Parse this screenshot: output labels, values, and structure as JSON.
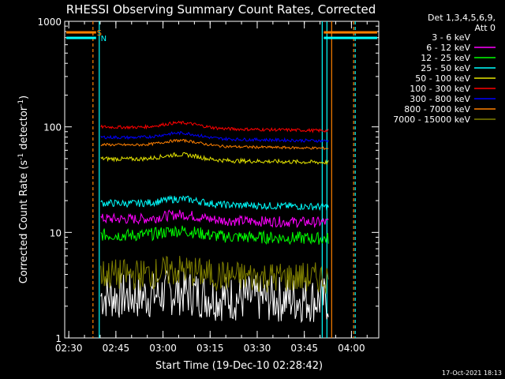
{
  "chart_data": {
    "type": "line",
    "title": "RHESSI Observing Summary Count Rates, Corrected",
    "xlabel": "Start Time (19-Dec-10 02:28:42)",
    "ylabel_pre": "Corrected Count Rate (s",
    "ylabel_sup1": "-1",
    "ylabel_mid": " detector",
    "ylabel_sup2": "-1",
    "ylabel_post": ")",
    "ylabel": "Corrected Count Rate (s-1 detector-1)",
    "yscale": "log",
    "ylim": [
      1,
      1000
    ],
    "xlim_minutes_after_0228": [
      0,
      100
    ],
    "x_ticks": [
      "02:30",
      "02:45",
      "03:00",
      "03:15",
      "03:30",
      "03:45",
      "04:00"
    ],
    "y_ticks": [
      "1",
      "10",
      "100",
      "1000"
    ],
    "legend_position": "top-right, outside plot",
    "legend_header": [
      "Det 1,3,4,5,6,9,",
      "Att 0"
    ],
    "flags": [
      {
        "label": "S",
        "color": "#ff8000"
      },
      {
        "label": "N",
        "color": "#00ffff"
      }
    ],
    "markers_minutes": [
      {
        "t": 9,
        "color": "#ff8000"
      },
      {
        "t": 11,
        "color": "#00ffff"
      },
      {
        "t": 82,
        "color": "#00ffff"
      },
      {
        "t": 83.5,
        "color": "#00ffff"
      },
      {
        "t": 85,
        "color": "#ff8000"
      },
      {
        "t": 92,
        "color": "#ff8000"
      },
      {
        "t": 92.5,
        "color": "#00ffff"
      }
    ],
    "data_start_minute": 11.5,
    "data_end_minute": 84,
    "series": [
      {
        "name": "3 - 6 keV",
        "color": "#ffffff",
        "level": 2.5,
        "noise": 0.45,
        "series_color_label": "#000000"
      },
      {
        "name": "6 - 12 keV",
        "color": "#ff00ff",
        "level": 13.5,
        "noise": 0.1
      },
      {
        "name": "12 - 25 keV",
        "color": "#00ff00",
        "level": 9.5,
        "noise": 0.12
      },
      {
        "name": "25 - 50 keV",
        "color": "#00ffff",
        "level": 19,
        "noise": 0.07
      },
      {
        "name": "50 - 100 keV",
        "color": "#e6e600",
        "level": 50,
        "noise": 0.04
      },
      {
        "name": "100 - 300 keV",
        "color": "#ff0000",
        "level": 100,
        "noise": 0.03
      },
      {
        "name": "300 - 800 keV",
        "color": "#0000ff",
        "level": 80,
        "noise": 0.03
      },
      {
        "name": "800 - 7000 keV",
        "color": "#ff8000",
        "level": 68,
        "noise": 0.025
      },
      {
        "name": "7000 - 15000 keV",
        "color": "#808000",
        "level": 4.0,
        "noise": 0.3
      }
    ],
    "legend_entries": [
      "3 - 6 keV",
      "6 - 12 keV",
      "12 - 25 keV",
      "25 - 50 keV",
      "50 - 100 keV",
      "100 - 300 keV",
      "300 - 800 keV",
      "800 - 7000 keV",
      "7000 - 15000 keV"
    ],
    "legend_colors": [
      "#000000",
      "#ff00ff",
      "#00ff00",
      "#00ffff",
      "#e6e600",
      "#ff0000",
      "#0000ff",
      "#ff8000",
      "#808000"
    ]
  },
  "footer": {
    "timestamp": "17-Oct-2021 18:13"
  }
}
